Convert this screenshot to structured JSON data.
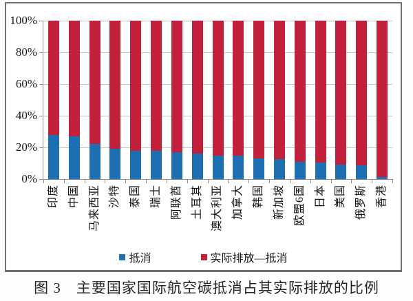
{
  "figure": {
    "caption": "图 3　主要国家国际航空碳抵消占其实际排放的比例"
  },
  "chart_data": {
    "type": "bar",
    "subtype": "stacked-100-percent",
    "title": "",
    "xlabel": "",
    "ylabel": "",
    "ylim": [
      0,
      100
    ],
    "yticks": [
      "0%",
      "20%",
      "40%",
      "60%",
      "80%",
      "100%"
    ],
    "grid": "horizontal",
    "legend_position": "bottom",
    "categories": [
      "印度",
      "中国",
      "马来西亚",
      "沙特",
      "泰国",
      "瑞士",
      "阿联酋",
      "土耳其",
      "澳大利亚",
      "加拿大",
      "韩国",
      "新加坡",
      "欧盟6国",
      "日本",
      "美国",
      "俄罗斯",
      "香港"
    ],
    "series": [
      {
        "name": "抵消",
        "color": "#1e6fb2",
        "values": [
          28,
          27,
          22,
          19,
          18,
          18,
          17,
          16,
          15,
          15,
          13,
          12.5,
          11,
          10.5,
          9,
          8.5,
          1.5
        ]
      },
      {
        "name": "实际排放—抵消",
        "color": "#c2213c",
        "values": [
          72,
          73,
          78,
          81,
          82,
          82,
          83,
          84,
          85,
          85,
          87,
          87.5,
          89,
          89.5,
          91,
          91.5,
          98.5
        ]
      }
    ]
  },
  "legend": {
    "items": [
      {
        "label": "抵消",
        "color": "#1e6fb2"
      },
      {
        "label": "实际排放—抵消",
        "color": "#c2213c"
      }
    ]
  },
  "colors": {
    "grid": "#c2c2c2",
    "axis": "#8d8d8d",
    "frame_border": "#6f6f6f",
    "text": "#1a1a1a"
  }
}
